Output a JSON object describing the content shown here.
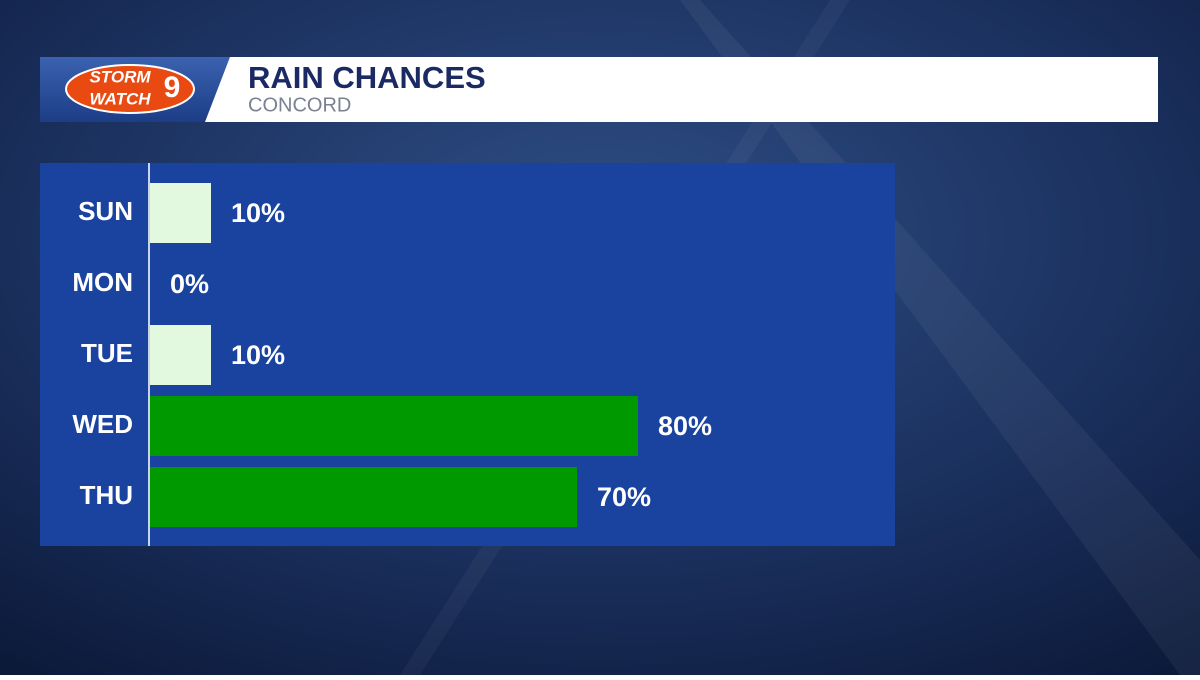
{
  "logo": {
    "line1": "STORM",
    "line2": "WATCH",
    "number": "9"
  },
  "chart_data": {
    "type": "hbar",
    "title": "RAIN CHANCES",
    "subtitle": "CONCORD",
    "categories": [
      "SUN",
      "MON",
      "TUE",
      "WED",
      "THU"
    ],
    "values": [
      10,
      0,
      10,
      80,
      70
    ],
    "value_labels": [
      "10%",
      "0%",
      "10%",
      "80%",
      "70%"
    ],
    "colors": [
      "#e2f9df",
      "#e2f9df",
      "#e2f9df",
      "#009a00",
      "#009a00"
    ],
    "xlim": [
      0,
      100
    ]
  }
}
